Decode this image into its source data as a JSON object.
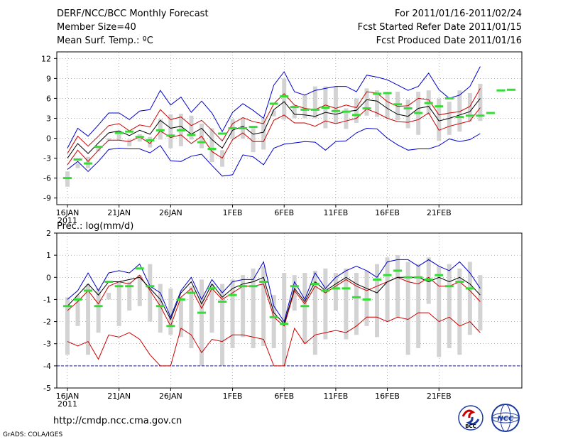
{
  "header": {
    "line1_left": "DERF/NCC/BCC Monthly Forecast",
    "line2_left": "Member Size=40",
    "line3_left": "Mean Surf. Temp.: ºC",
    "line1_right": "For 2011/01/16-2011/02/24",
    "line2_right": "Fcst Started Refer Date 2011/01/15",
    "line3_right": "Fcst Produced Date 2011/01/16"
  },
  "footer": {
    "url": "http://cmdp.ncc.cma.gov.cn",
    "grads": "GrADS: COLA/IGES",
    "logo_bcc": "BCC",
    "logo_ncc": "NCC"
  },
  "colors": {
    "max_line": "#0000cc",
    "spread_line": "#cc0000",
    "mean_line": "#000000",
    "obs_marker": "#33dd33",
    "box": "#d3d3d3",
    "grid": "#888888"
  },
  "chart_data": [
    {
      "type": "line",
      "title": "Mean Surf. Temp.: ºC",
      "ylim": [
        -10,
        13
      ],
      "yticks": [
        -9,
        -6,
        -3,
        0,
        3,
        6,
        9,
        12
      ],
      "xticks": [
        {
          "day": 0,
          "label": "16JAN",
          "sub": "2011"
        },
        {
          "day": 5,
          "label": "21JAN",
          "sub": ""
        },
        {
          "day": 10,
          "label": "26JAN",
          "sub": ""
        },
        {
          "day": 16,
          "label": "1FEB",
          "sub": ""
        },
        {
          "day": 21,
          "label": "6FEB",
          "sub": ""
        },
        {
          "day": 26,
          "label": "11FEB",
          "sub": ""
        },
        {
          "day": 31,
          "label": "16FEB",
          "sub": ""
        },
        {
          "day": 36,
          "label": "21FEB",
          "sub": ""
        }
      ],
      "grid": true,
      "series": [
        {
          "name": "max",
          "color": "#0000cc",
          "values": [
            -1.5,
            1.5,
            0.3,
            2,
            3.8,
            3.8,
            2.8,
            4.1,
            4.3,
            7.2,
            5.0,
            6.2,
            3.9,
            5.6,
            3.8,
            1.0,
            3.9,
            5.2,
            4.2,
            3.0,
            8.0,
            10.0,
            7.0,
            6.5,
            7.2,
            7.5,
            7.8,
            7.8,
            7.0,
            9.5,
            9.2,
            8.8,
            8.0,
            7.2,
            7.8,
            9.8,
            7.3,
            6.0,
            6.5,
            7.8,
            10.8
          ]
        },
        {
          "name": "upper",
          "color": "#cc0000",
          "values": [
            -2.3,
            0.3,
            -1.2,
            0.3,
            1.9,
            2.2,
            1.1,
            2.0,
            1.7,
            4.3,
            2.8,
            3.2,
            1.9,
            2.7,
            1.2,
            -0.4,
            2.2,
            3.1,
            2.5,
            2.2,
            5.2,
            6.7,
            5.0,
            4.5,
            4.3,
            5.0,
            4.5,
            5.0,
            4.6,
            7.0,
            6.8,
            5.5,
            4.8,
            4.9,
            6.0,
            5.8,
            3.5,
            3.8,
            4.0,
            4.8,
            7.5
          ]
        },
        {
          "name": "mean",
          "color": "#000000",
          "values": [
            -3.0,
            -0.8,
            -2.3,
            -0.7,
            0.8,
            1.1,
            0.4,
            1.2,
            0.6,
            2.7,
            1.5,
            1.8,
            0.6,
            1.5,
            -0.2,
            -1.5,
            1.2,
            1.8,
            0.6,
            0.9,
            4.3,
            5.5,
            3.6,
            3.5,
            3.3,
            3.9,
            3.6,
            4.0,
            4.2,
            5.8,
            5.6,
            4.5,
            3.6,
            3.3,
            4.5,
            4.8,
            2.6,
            3.0,
            3.5,
            4.0,
            6.0
          ]
        },
        {
          "name": "lower",
          "color": "#cc0000",
          "values": [
            -4.0,
            -1.8,
            -3.5,
            -1.8,
            -0.3,
            -0.3,
            -0.5,
            0.2,
            -0.8,
            1.1,
            0.1,
            0.5,
            -0.8,
            0.3,
            -2.0,
            -3.0,
            -0.2,
            0.8,
            -0.5,
            -0.5,
            2.7,
            3.5,
            2.3,
            2.3,
            1.8,
            2.6,
            2.2,
            2.6,
            3.0,
            4.4,
            3.8,
            3.0,
            2.5,
            2.4,
            2.8,
            3.8,
            1.2,
            1.8,
            2.2,
            2.6,
            4.6
          ]
        },
        {
          "name": "min",
          "color": "#0000cc",
          "values": [
            -4.7,
            -3.5,
            -5.0,
            -3.5,
            -1.7,
            -1.5,
            -1.6,
            -1.6,
            -2.2,
            -1.1,
            -3.4,
            -3.5,
            -2.7,
            -2.4,
            -4.1,
            -5.7,
            -5.5,
            -2.5,
            -2.8,
            -4.0,
            -1.5,
            -0.9,
            -0.7,
            -0.5,
            -0.6,
            -1.8,
            -0.5,
            -0.4,
            0.8,
            1.5,
            1.4,
            0.0,
            -1.0,
            -1.8,
            -1.6,
            -1.6,
            -1.1,
            -0.1,
            -0.5,
            -0.2,
            0.7
          ]
        }
      ],
      "boxes": {
        "top": [
          -5.0,
          -3.8,
          -2.8,
          -1.5,
          0.0,
          0.6,
          -0.2,
          0.6,
          0.2,
          2.9,
          3.6,
          3.7,
          3.4,
          2.2,
          1.5,
          -1.8,
          2.9,
          3.1,
          1.5,
          2.9,
          4.2,
          9.0,
          5.0,
          6.5,
          7.8,
          7.8,
          7.8,
          4.5,
          6.0,
          7.5,
          7.2,
          6.9,
          7.0,
          5.8,
          7.0,
          7.2,
          6.0,
          5.5,
          7.2,
          6.8,
          8.2
        ],
        "bottom": [
          -7.3,
          -4.5,
          -4.5,
          -2.0,
          -0.3,
          -0.3,
          -1.2,
          -0.5,
          -1.4,
          -0.2,
          -1.5,
          -1.2,
          -0.2,
          -1.5,
          -3.6,
          -4.3,
          -0.1,
          -0.1,
          -2.1,
          -1.7,
          3.3,
          2.8,
          3.0,
          3.0,
          3.0,
          1.5,
          2.2,
          1.4,
          2.3,
          3.4,
          3.2,
          3.0,
          2.7,
          1.5,
          0.5,
          3.5,
          -0.4,
          0.5,
          1.0,
          2.5,
          2.6
        ]
      },
      "observed": [
        -6.0,
        -3.2,
        -3.8,
        -1.3,
        0.8,
        1.0,
        0.2,
        -0.3,
        1.2,
        0.4,
        1.2,
        0.5,
        -0.6,
        -1.6,
        0.7,
        1.5,
        1.5,
        1.7,
        5.2,
        6.3,
        4.7,
        4.3,
        4.3,
        4.6,
        4.1,
        4.0,
        3.5,
        4.5,
        6.7,
        6.8,
        5.1,
        4.5,
        3.8,
        5.3,
        4.8,
        6.0,
        3.2,
        3.4,
        3.4,
        3.8,
        7.2,
        7.3
      ],
      "observed_days": [
        0,
        1,
        2,
        3,
        5,
        6,
        7,
        8,
        9,
        10,
        11,
        12,
        13,
        14,
        15,
        16,
        17,
        18,
        20,
        21,
        22,
        23,
        24,
        25,
        26,
        27,
        28,
        29,
        30,
        31,
        32,
        33,
        34,
        35,
        36,
        37,
        38,
        39,
        40,
        41,
        42,
        43
      ]
    },
    {
      "type": "line",
      "title": "Prec.: log(mm/d)",
      "ylim": [
        -5,
        2
      ],
      "yticks": [
        -5,
        -4,
        -3,
        -2,
        -1,
        0,
        1,
        2
      ],
      "xticks": [
        {
          "day": 0,
          "label": "16JAN",
          "sub": "2011"
        },
        {
          "day": 5,
          "label": "21JAN",
          "sub": ""
        },
        {
          "day": 10,
          "label": "26JAN",
          "sub": ""
        },
        {
          "day": 16,
          "label": "1FEB",
          "sub": ""
        },
        {
          "day": 21,
          "label": "6FEB",
          "sub": ""
        },
        {
          "day": 26,
          "label": "11FEB",
          "sub": ""
        },
        {
          "day": 31,
          "label": "16FEB",
          "sub": ""
        },
        {
          "day": 36,
          "label": "21FEB",
          "sub": ""
        }
      ],
      "grid": true,
      "baseline": -4,
      "series": [
        {
          "name": "max",
          "color": "#0000cc",
          "values": [
            -1.0,
            -0.6,
            0.2,
            -0.6,
            0.2,
            0.3,
            0.2,
            0.6,
            -0.4,
            -0.7,
            -1.8,
            -0.6,
            0.0,
            -1.0,
            -0.1,
            -0.7,
            -0.2,
            -0.1,
            -0.1,
            0.7,
            -1.3,
            -2.0,
            -0.2,
            -1.0,
            0.2,
            -0.5,
            0.0,
            0.3,
            0.5,
            0.3,
            0.0,
            0.7,
            0.8,
            0.8,
            0.5,
            0.8,
            0.5,
            0.3,
            0.7,
            0.2,
            -0.5
          ]
        },
        {
          "name": "upper",
          "color": "#cc0000",
          "values": [
            -1.5,
            -1.1,
            -0.6,
            -1.2,
            -0.4,
            -0.2,
            -0.3,
            0.1,
            -0.6,
            -1.3,
            -2.2,
            -0.9,
            -0.5,
            -1.4,
            -0.5,
            -1.0,
            -0.7,
            -0.4,
            -0.4,
            -0.3,
            -1.8,
            -2.2,
            -0.6,
            -1.2,
            -0.4,
            -0.7,
            -0.4,
            -0.1,
            -0.4,
            -0.6,
            -0.4,
            -0.2,
            0.0,
            -0.2,
            -0.3,
            0.0,
            -0.4,
            -0.4,
            -0.2,
            -0.6,
            -1.1
          ]
        },
        {
          "name": "mean",
          "color": "#000000",
          "values": [
            -1.3,
            -0.8,
            -0.3,
            -0.8,
            -0.2,
            -0.2,
            -0.1,
            0.0,
            -0.5,
            -1.0,
            -1.9,
            -0.7,
            -0.2,
            -1.2,
            -0.3,
            -0.9,
            -0.5,
            -0.3,
            -0.2,
            0.0,
            -1.6,
            -2.1,
            -0.5,
            -1.1,
            -0.2,
            -0.6,
            -0.3,
            0.0,
            -0.3,
            -0.5,
            -0.7,
            -0.2,
            0.0,
            0.0,
            0.0,
            -0.2,
            0.0,
            -0.2,
            0.0,
            -0.3,
            -0.8
          ]
        },
        {
          "name": "lower",
          "color": "#cc0000",
          "values": [
            -2.9,
            -3.1,
            -2.9,
            -3.7,
            -2.6,
            -2.7,
            -2.5,
            -2.8,
            -3.5,
            -4.0,
            -4.0,
            -2.3,
            -2.6,
            -3.4,
            -2.8,
            -2.9,
            -2.6,
            -2.6,
            -2.7,
            -2.8,
            -4.0,
            -4.0,
            -2.3,
            -3.0,
            -2.6,
            -2.5,
            -2.4,
            -2.5,
            -2.2,
            -1.8,
            -1.8,
            -2.0,
            -1.8,
            -1.9,
            -1.6,
            -1.6,
            -2.0,
            -1.8,
            -2.2,
            -2.0,
            -2.5
          ]
        }
      ],
      "boxes": {
        "top": [
          -0.9,
          -0.8,
          -0.3,
          -0.5,
          -0.7,
          -0.2,
          -0.2,
          0.1,
          0.6,
          -0.3,
          -0.5,
          -0.9,
          -0.4,
          -0.1,
          -0.3,
          -0.3,
          -0.1,
          0.1,
          0.4,
          0.5,
          -0.8,
          0.2,
          0.1,
          0.2,
          0.3,
          0.4,
          0.2,
          0.4,
          0.2,
          0.3,
          0.6,
          0.9,
          1.0,
          0.7,
          0.6,
          0.9,
          0.5,
          0.6,
          0.4,
          0.7,
          0.1
        ],
        "bottom": [
          -3.5,
          -2.2,
          -3.5,
          -2.5,
          -1.0,
          -2.2,
          -1.5,
          -1.3,
          -2.0,
          -2.5,
          -2.6,
          -2.7,
          -3.2,
          -4.0,
          -2.5,
          -4.0,
          -3.2,
          -2.7,
          -3.2,
          -3.1,
          -3.2,
          -4.0,
          -1.5,
          -3.0,
          -3.5,
          -2.8,
          -1.5,
          -2.8,
          -2.6,
          -2.2,
          -2.7,
          -2.0,
          -1.8,
          -3.5,
          -3.2,
          -1.2,
          -3.6,
          -3.2,
          -3.5,
          -2.6,
          -2.4
        ]
      },
      "observed": [
        -1.3,
        -1.0,
        -0.6,
        -1.3,
        -0.2,
        -0.4,
        -0.4,
        0.4,
        -0.4,
        -1.3,
        -2.2,
        -1.0,
        -0.7,
        -1.6,
        -0.5,
        -1.1,
        -0.8,
        -0.4,
        -0.4,
        -0.2,
        -1.8,
        -2.1,
        -0.4,
        -1.3,
        -0.3,
        -0.6,
        -0.5,
        -0.5,
        -0.9,
        -1.0,
        -0.1,
        0.1,
        0.3,
        0.0,
        0.0,
        -0.1,
        0.1,
        -0.4,
        -0.2,
        -0.5
      ],
      "observed_days": [
        0,
        1,
        2,
        3,
        4,
        5,
        6,
        7,
        8,
        9,
        10,
        11,
        12,
        13,
        14,
        15,
        16,
        17,
        18,
        19,
        20,
        21,
        22,
        23,
        24,
        25,
        26,
        27,
        28,
        29,
        30,
        31,
        32,
        33,
        34,
        35,
        36,
        37,
        38,
        39
      ]
    }
  ]
}
